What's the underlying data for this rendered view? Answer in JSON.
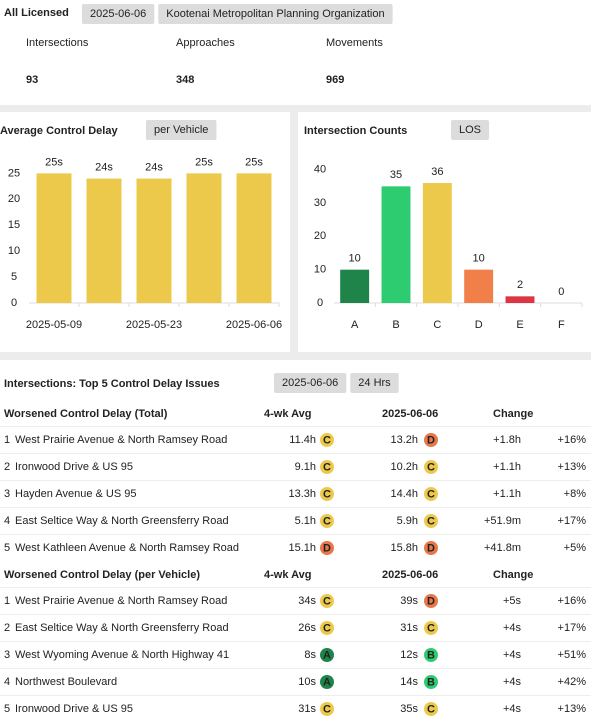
{
  "header": {
    "title": "All Licensed",
    "date": "2025-06-06",
    "org": "Kootenai Metropolitan Planning Organization"
  },
  "kpis": [
    {
      "label": "Intersections",
      "value": 93
    },
    {
      "label": "Approaches",
      "value": 348
    },
    {
      "label": "Movements",
      "value": 969
    }
  ],
  "chart_data": [
    {
      "type": "bar",
      "title": "Average Control Delay",
      "button": "per Vehicle",
      "categories": [
        "2025-05-09",
        null,
        "2025-05-23",
        null,
        "2025-06-06"
      ],
      "values": [
        25,
        24,
        24,
        25,
        25
      ],
      "value_labels": [
        "25s",
        "24s",
        "24s",
        "25s",
        "25s"
      ],
      "color": "#edc94b",
      "ylim": [
        0,
        27
      ],
      "yticks": [
        0,
        5,
        10,
        15,
        20,
        25
      ]
    },
    {
      "type": "bar",
      "title": "Intersection Counts",
      "button": "LOS",
      "categories": [
        "A",
        "B",
        "C",
        "D",
        "E",
        "F"
      ],
      "values": [
        10,
        35,
        36,
        10,
        2,
        0
      ],
      "colors": [
        "#1e8449",
        "#2ecc71",
        "#edc94b",
        "#f07f4a",
        "#dc3545",
        "#999999"
      ],
      "ylim": [
        0,
        42
      ],
      "yticks": [
        0,
        10,
        20,
        30,
        40
      ]
    }
  ],
  "table": {
    "title": "Intersections: Top 5 Control Delay Issues",
    "date": "2025-06-06",
    "period": "24 Hrs",
    "groups": [
      {
        "columns": [
          "Worsened Control Delay (Total)",
          "4-wk Avg",
          "2025-06-06",
          "Change"
        ],
        "rows": [
          [
            1,
            "West Prairie Avenue & North Ramsey Road",
            "11.4h",
            "C",
            "13.2h",
            "D",
            "+1.8h",
            "+16%"
          ],
          [
            2,
            "Ironwood Drive & US 95",
            "9.1h",
            "C",
            "10.2h",
            "C",
            "+1.1h",
            "+13%"
          ],
          [
            3,
            "Hayden Avenue & US 95",
            "13.3h",
            "C",
            "14.4h",
            "C",
            "+1.1h",
            "+8%"
          ],
          [
            4,
            "East Seltice Way & North Greensferry Road",
            "5.1h",
            "C",
            "5.9h",
            "C",
            "+51.9m",
            "+17%"
          ],
          [
            5,
            "West Kathleen Avenue & North Ramsey Road",
            "15.1h",
            "D",
            "15.8h",
            "D",
            "+41.8m",
            "+5%"
          ]
        ]
      },
      {
        "columns": [
          "Worsened Control Delay (per Vehicle)",
          "4-wk Avg",
          "2025-06-06",
          "Change"
        ],
        "rows": [
          [
            1,
            "West Prairie Avenue & North Ramsey Road",
            "34s",
            "C",
            "39s",
            "D",
            "+5s",
            "+16%"
          ],
          [
            2,
            "East Seltice Way & North Greensferry Road",
            "26s",
            "C",
            "31s",
            "C",
            "+4s",
            "+17%"
          ],
          [
            3,
            "West Wyoming Avenue & North Highway 41",
            "8s",
            "A",
            "12s",
            "B",
            "+4s",
            "+51%"
          ],
          [
            4,
            "Northwest Boulevard",
            "10s",
            "A",
            "14s",
            "B",
            "+4s",
            "+42%"
          ],
          [
            5,
            "Ironwood Drive & US 95",
            "31s",
            "C",
            "35s",
            "C",
            "+4s",
            "+13%"
          ]
        ]
      }
    ]
  }
}
